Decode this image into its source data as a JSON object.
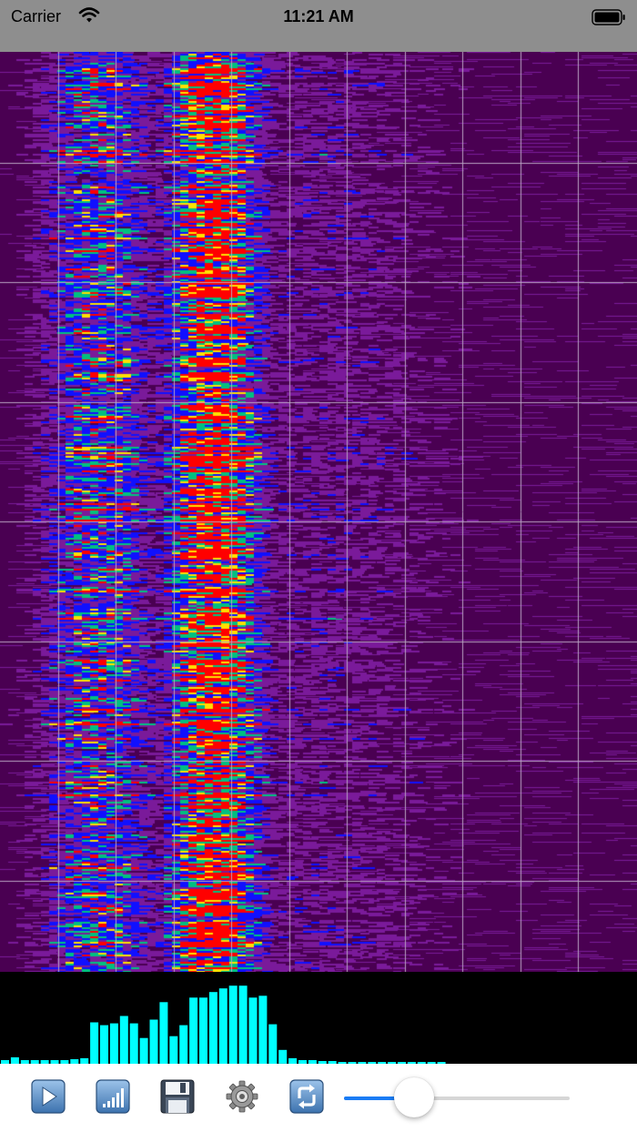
{
  "status_bar": {
    "carrier": "Carrier",
    "time": "11:21 AM",
    "wifi_icon": "wifi-icon",
    "battery_icon": "battery-icon",
    "battery_level": 1.0
  },
  "spectrogram": {
    "background_color": "#4a0052",
    "gridline_color": "#b9a2c2",
    "vertical_gridlines": 10,
    "horizontal_gridlines": 7,
    "palette": [
      "#4a0052",
      "#7a1a9a",
      "#1010ff",
      "#00c080",
      "#ffe000",
      "#ff0000"
    ],
    "hot_band": "strongest energy in low frequency columns, peaking near the third gridline"
  },
  "spectrum": {
    "background_color": "#000000",
    "bar_color": "#00ffff",
    "bar_levels": [
      0.04,
      0.07,
      0.04,
      0.04,
      0.04,
      0.04,
      0.04,
      0.05,
      0.06,
      0.45,
      0.42,
      0.44,
      0.52,
      0.44,
      0.28,
      0.48,
      0.67,
      0.3,
      0.42,
      0.72,
      0.72,
      0.78,
      0.82,
      0.85,
      0.85,
      0.72,
      0.74,
      0.43,
      0.15,
      0.06,
      0.04,
      0.04,
      0.03,
      0.03,
      0.02,
      0.02,
      0.02,
      0.02,
      0.02,
      0.02,
      0.02,
      0.02,
      0.02,
      0.02,
      0.02
    ]
  },
  "toolbar": {
    "play_icon": "play-icon",
    "signal_icon": "signal-bars-icon",
    "save_icon": "floppy-disk-icon",
    "settings_icon": "gear-icon",
    "refresh_icon": "refresh-icon",
    "slider_value": 0.31,
    "slider_fill_color": "#1a7cf5",
    "slider_track_color": "#d6d6d6"
  }
}
